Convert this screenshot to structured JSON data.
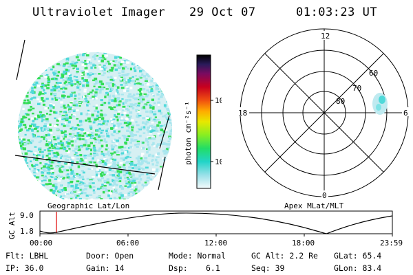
{
  "header": {
    "title": "Ultraviolet Imager",
    "date": "29 Oct 07",
    "time": "01:03:23 UT"
  },
  "colorbar": {
    "label": "photon cm⁻²s⁻¹",
    "ticks": [
      "100",
      "10"
    ]
  },
  "polar_plot": {
    "labels": [
      "12",
      "18",
      "6",
      "0"
    ],
    "lat_rings": [
      "60",
      "70",
      "80"
    ]
  },
  "panels": {
    "left_label": "Geographic Lat/Lon",
    "right_label": "Apex MLat/MLT"
  },
  "altitude_plot": {
    "ylabel": "GC Alt",
    "yticks": [
      "9.0",
      "1.8"
    ],
    "xticks": [
      "00:00",
      "06:00",
      "12:00",
      "18:00",
      "23:59"
    ]
  },
  "info": {
    "flt": "Flt: LBHL",
    "ip": "IP: 36.0",
    "door": "Door: Open",
    "gain": "Gain: 14",
    "mode": "Mode: Normal",
    "dsp_label": "Dsp:",
    "dsp_value": "6.1",
    "gc_alt": "GC Alt: 2.2 Re",
    "seq": "Seq: 39",
    "glat": "GLat: 65.4",
    "glon": "GLon: 83.4"
  },
  "colors": {
    "accent_red": "#e00000",
    "cyan_low": "#a8e6ee",
    "cyan_mid": "#4fd9d9",
    "green": "#33dd55"
  }
}
